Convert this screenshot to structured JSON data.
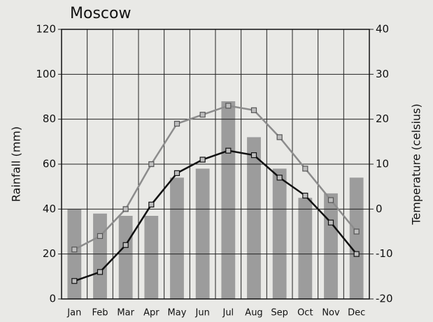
{
  "chart_data": {
    "type": "bar",
    "title": "Moscow",
    "ylabel": "Rainfall (mm)",
    "y2label": "Temperature (celsius)",
    "categories": [
      "Jan",
      "Feb",
      "Mar",
      "Apr",
      "May",
      "Jun",
      "Jul",
      "Aug",
      "Sep",
      "Oct",
      "Nov",
      "Dec"
    ],
    "series": [
      {
        "type": "bar",
        "color": "#9c9c9c",
        "values": [
          40,
          38,
          37,
          37,
          54,
          58,
          88,
          72,
          58,
          45,
          47,
          54
        ]
      },
      {
        "type": "line",
        "axis": "y2",
        "color": "#8c8c8c",
        "marker": "square",
        "values": [
          -9,
          -6,
          0,
          10,
          19,
          21,
          23,
          22,
          16,
          9,
          2,
          -5
        ]
      },
      {
        "type": "line",
        "axis": "y2",
        "color": "#111111",
        "marker": "square",
        "values": [
          -16,
          -14,
          -8,
          1,
          8,
          11,
          13,
          12,
          7,
          3,
          -3,
          -10
        ]
      }
    ],
    "ylim": [
      0,
      120
    ],
    "yticks": [
      0,
      20,
      40,
      60,
      80,
      100,
      120
    ],
    "y2lim": [
      -20,
      40
    ],
    "y2ticks": [
      -20,
      -10,
      0,
      10,
      20,
      30,
      40
    ],
    "grid": true
  }
}
